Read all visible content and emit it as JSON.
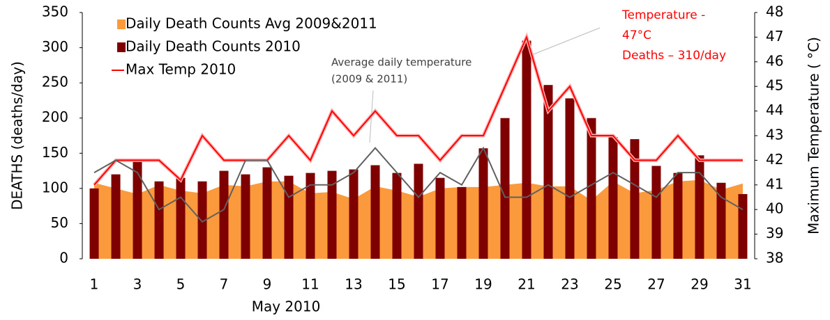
{
  "chart_data": {
    "type": "bar-area-line",
    "x": [
      1,
      2,
      3,
      4,
      5,
      6,
      7,
      8,
      9,
      10,
      11,
      12,
      13,
      14,
      15,
      16,
      17,
      18,
      19,
      20,
      21,
      22,
      23,
      24,
      25,
      26,
      27,
      28,
      29,
      30,
      31
    ],
    "xlim": [
      0.45,
      31.55
    ],
    "xticks": [
      1,
      3,
      5,
      7,
      9,
      11,
      13,
      15,
      17,
      19,
      21,
      23,
      25,
      27,
      29,
      31
    ],
    "xlabel": "May  2010",
    "ylabel": "DEATHS (deaths/day)",
    "y2label": "Maximum Temperature ( °C)",
    "ylim": [
      0,
      350
    ],
    "yticks": [
      0,
      50,
      100,
      150,
      200,
      250,
      300,
      350
    ],
    "y2lim": [
      38,
      48
    ],
    "y2ticks": [
      38,
      39,
      40,
      41,
      42,
      43,
      44,
      45,
      46,
      47,
      48
    ],
    "series": [
      {
        "name": "Daily Death Counts Avg 2009&2011",
        "kind": "area",
        "color": "#fb9a3c",
        "values": [
          108,
          100,
          92,
          105,
          97,
          93,
          105,
          103,
          110,
          110,
          93,
          95,
          85,
          103,
          97,
          88,
          100,
          102,
          102,
          105,
          108,
          103,
          103,
          83,
          110,
          93,
          98,
          110,
          112,
          98,
          107
        ]
      },
      {
        "name": "Daily Death Counts 2010",
        "kind": "bar",
        "color": "#7f0000",
        "values": [
          100,
          120,
          140,
          110,
          115,
          110,
          125,
          120,
          130,
          118,
          122,
          125,
          127,
          133,
          122,
          135,
          115,
          102,
          157,
          200,
          310,
          247,
          228,
          200,
          173,
          170,
          132,
          122,
          147,
          108,
          92
        ]
      },
      {
        "name": "Max Temp 2010",
        "kind": "line",
        "axis": "y2",
        "color": "#ff0000",
        "values": [
          41,
          42,
          42,
          42,
          41.2,
          43,
          42,
          42,
          42,
          43,
          42,
          44,
          43,
          44,
          43,
          43,
          42,
          43,
          43,
          45,
          47,
          44,
          45,
          43,
          43,
          42,
          42,
          43,
          42,
          42,
          42
        ]
      },
      {
        "kind": "line",
        "axis": "y2",
        "color": "#606060",
        "values": [
          41.5,
          42,
          41.5,
          40,
          40.5,
          39.5,
          40,
          42,
          42,
          40.5,
          41,
          41,
          41.5,
          42.5,
          41.5,
          40.5,
          41.5,
          41,
          42.5,
          40.5,
          40.5,
          41,
          40.5,
          41,
          41.5,
          41,
          40.5,
          41.5,
          41.5,
          40.5,
          40
        ]
      }
    ],
    "annotations": [
      {
        "lines": [
          "Average daily temperature",
          "(2009 & 2011)"
        ],
        "color": "#404040"
      },
      {
        "lines": [
          "Temperature -",
          "47°C",
          "Deaths – 310/day"
        ],
        "color": "#ff0000"
      }
    ]
  }
}
